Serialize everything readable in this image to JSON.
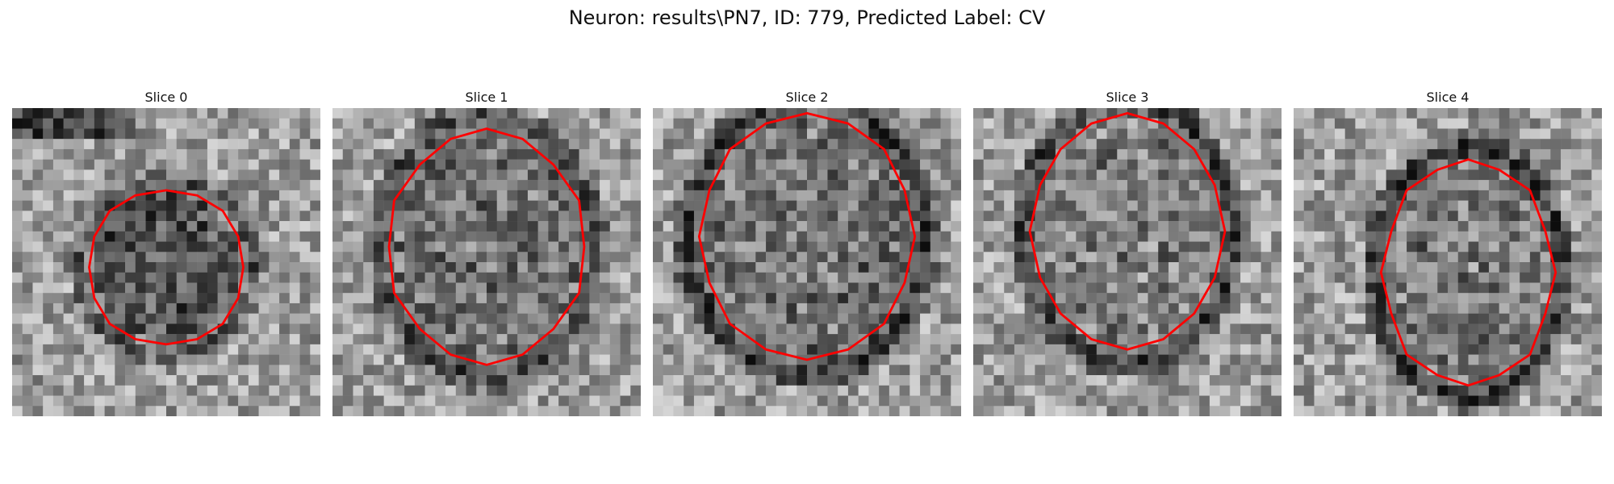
{
  "figure": {
    "title": "Neuron: results\\PN7, ID: 779, Predicted Label: CV"
  },
  "panels": [
    {
      "title": "Slice 0"
    },
    {
      "title": "Slice 1"
    },
    {
      "title": "Slice 2"
    },
    {
      "title": "Slice 3"
    },
    {
      "title": "Slice 4"
    }
  ],
  "colors": {
    "contour": "#ff0000",
    "background": "#ffffff",
    "colormap": "gray"
  }
}
